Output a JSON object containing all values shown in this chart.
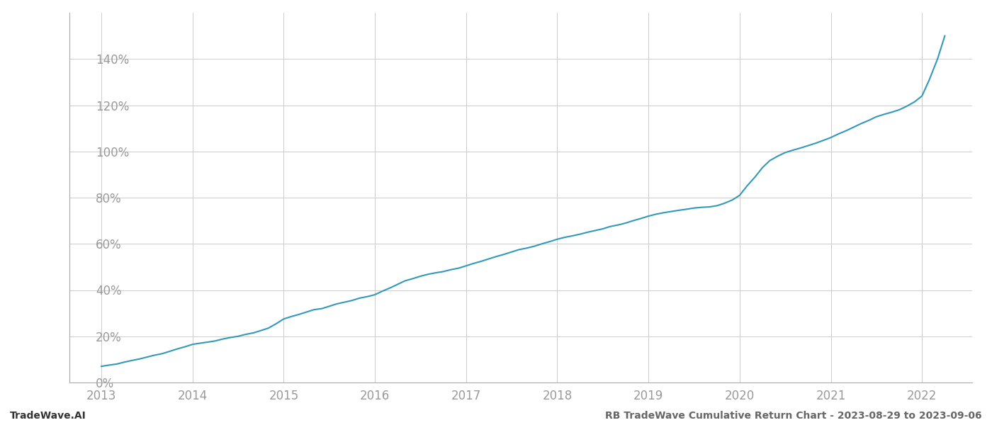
{
  "title_right": "RB TradeWave Cumulative Return Chart - 2023-08-29 to 2023-09-06",
  "title_left": "TradeWave.AI",
  "line_color": "#3399bb",
  "background_color": "#ffffff",
  "grid_color": "#cccccc",
  "x_years": [
    2013,
    2014,
    2015,
    2016,
    2017,
    2018,
    2019,
    2020,
    2021,
    2022
  ],
  "x_values": [
    2013.0,
    2013.08,
    2013.17,
    2013.25,
    2013.33,
    2013.42,
    2013.5,
    2013.58,
    2013.67,
    2013.75,
    2013.83,
    2013.92,
    2014.0,
    2014.08,
    2014.17,
    2014.25,
    2014.33,
    2014.42,
    2014.5,
    2014.58,
    2014.67,
    2014.75,
    2014.83,
    2014.92,
    2015.0,
    2015.08,
    2015.17,
    2015.25,
    2015.33,
    2015.42,
    2015.5,
    2015.58,
    2015.67,
    2015.75,
    2015.83,
    2015.92,
    2016.0,
    2016.08,
    2016.17,
    2016.25,
    2016.33,
    2016.42,
    2016.5,
    2016.58,
    2016.67,
    2016.75,
    2016.83,
    2016.92,
    2017.0,
    2017.08,
    2017.17,
    2017.25,
    2017.33,
    2017.42,
    2017.5,
    2017.58,
    2017.67,
    2017.75,
    2017.83,
    2017.92,
    2018.0,
    2018.08,
    2018.17,
    2018.25,
    2018.33,
    2018.42,
    2018.5,
    2018.58,
    2018.67,
    2018.75,
    2018.83,
    2018.92,
    2019.0,
    2019.08,
    2019.17,
    2019.25,
    2019.33,
    2019.42,
    2019.5,
    2019.58,
    2019.67,
    2019.75,
    2019.83,
    2019.92,
    2020.0,
    2020.08,
    2020.17,
    2020.25,
    2020.33,
    2020.42,
    2020.5,
    2020.58,
    2020.67,
    2020.75,
    2020.83,
    2020.92,
    2021.0,
    2021.08,
    2021.17,
    2021.25,
    2021.33,
    2021.42,
    2021.5,
    2021.58,
    2021.67,
    2021.75,
    2021.83,
    2021.92,
    2022.0,
    2022.08,
    2022.17,
    2022.25
  ],
  "y_values": [
    7.0,
    7.5,
    8.0,
    8.8,
    9.5,
    10.2,
    11.0,
    11.8,
    12.5,
    13.5,
    14.5,
    15.5,
    16.5,
    17.0,
    17.5,
    18.0,
    18.8,
    19.5,
    20.0,
    20.8,
    21.5,
    22.5,
    23.5,
    25.5,
    27.5,
    28.5,
    29.5,
    30.5,
    31.5,
    32.0,
    33.0,
    34.0,
    34.8,
    35.5,
    36.5,
    37.2,
    38.0,
    39.5,
    41.0,
    42.5,
    44.0,
    45.0,
    46.0,
    46.8,
    47.5,
    48.0,
    48.8,
    49.5,
    50.5,
    51.5,
    52.5,
    53.5,
    54.5,
    55.5,
    56.5,
    57.5,
    58.2,
    59.0,
    60.0,
    61.0,
    62.0,
    62.8,
    63.5,
    64.2,
    65.0,
    65.8,
    66.5,
    67.5,
    68.2,
    69.0,
    70.0,
    71.0,
    72.0,
    72.8,
    73.5,
    74.0,
    74.5,
    75.0,
    75.5,
    75.8,
    76.0,
    76.5,
    77.5,
    79.0,
    81.0,
    85.0,
    89.0,
    93.0,
    96.0,
    98.0,
    99.5,
    100.5,
    101.5,
    102.5,
    103.5,
    104.8,
    106.0,
    107.5,
    109.0,
    110.5,
    112.0,
    113.5,
    115.0,
    116.0,
    117.0,
    118.0,
    119.5,
    121.5,
    124.0,
    131.0,
    140.0,
    150.0
  ],
  "ylim": [
    0,
    160
  ],
  "xlim": [
    2012.65,
    2022.55
  ],
  "yticks": [
    0,
    20,
    40,
    60,
    80,
    100,
    120,
    140
  ],
  "title_fontsize": 10,
  "tick_fontsize": 12,
  "label_color": "#999999",
  "footer_left_color": "#333333",
  "footer_right_color": "#666666"
}
